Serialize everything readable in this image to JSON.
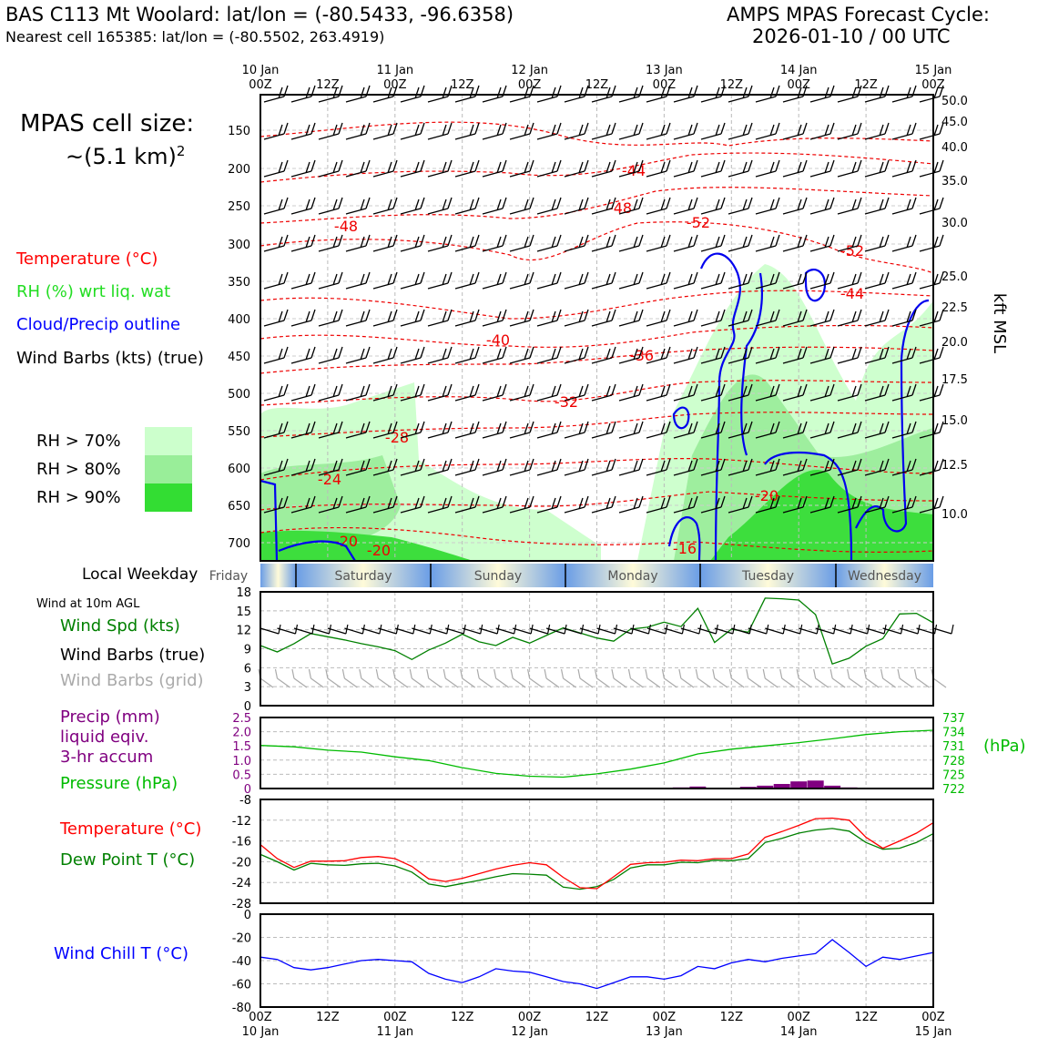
{
  "header": {
    "title": "BAS C113 Mt Woolard: lat/lon = (-80.5433, -96.6358)",
    "subtitle": "Nearest cell 165385: lat/lon = (-80.5502, 263.4919)",
    "forecast_title": "AMPS MPAS Forecast Cycle:",
    "forecast_cycle": "2026-01-10 / 00 UTC"
  },
  "cell_size": {
    "line1": "MPAS cell size:",
    "line2": "~(5.1 km)",
    "exp": "2"
  },
  "legend_upper": [
    {
      "label": "Temperature (°C)",
      "color": "#ff0000"
    },
    {
      "label": "RH (%) wrt liq. wat",
      "color": "#22dd22"
    },
    {
      "label": "Cloud/Precip outline",
      "color": "#0000ff"
    },
    {
      "label": "Wind Barbs (kts) (true)",
      "color": "#000000"
    }
  ],
  "rh_legend": [
    {
      "label": "RH > 70%",
      "color": "#ccffcc"
    },
    {
      "label": "RH > 80%",
      "color": "#99ee99"
    },
    {
      "label": "RH > 90%",
      "color": "#33dd33"
    }
  ],
  "legend_wind": {
    "title": "Wind at 10m AGL",
    "items": [
      {
        "label": "Wind Spd (kts)",
        "color": "#008000"
      },
      {
        "label": "Wind Barbs (true)",
        "color": "#000000"
      },
      {
        "label": "Wind Barbs (grid)",
        "color": "#aaaaaa"
      }
    ]
  },
  "legend_precip": [
    {
      "label": "Precip (mm)",
      "color": "#800080"
    },
    {
      "label": "liquid eqiv.",
      "color": "#800080"
    },
    {
      "label": "3-hr accum",
      "color": "#800080"
    },
    {
      "label": "Pressure (hPa)",
      "color": "#00bb00"
    }
  ],
  "legend_temp": [
    {
      "label": "Temperature (°C)",
      "color": "#ff0000"
    },
    {
      "label": "Dew Point T (°C)",
      "color": "#008000"
    }
  ],
  "legend_chill": {
    "label": "Wind Chill T (°C)",
    "color": "#0000ff"
  },
  "weekday": {
    "label": "Local Weekday",
    "days": [
      "Friday",
      "Saturday",
      "Sunday",
      "Monday",
      "Tuesday",
      "Wednesday"
    ]
  },
  "time_axis": {
    "labels": [
      "00Z",
      "12Z",
      "00Z",
      "12Z",
      "00Z",
      "12Z",
      "00Z",
      "12Z",
      "00Z",
      "12Z",
      "00Z"
    ],
    "dates": [
      {
        "label": "10 Jan",
        "at": 0
      },
      {
        "label": "11 Jan",
        "at": 2
      },
      {
        "label": "12 Jan",
        "at": 4
      },
      {
        "label": "13 Jan",
        "at": 6
      },
      {
        "label": "14 Jan",
        "at": 8
      },
      {
        "label": "15 Jan",
        "at": 10
      }
    ]
  },
  "chart_data": [
    {
      "type": "contour",
      "name": "upper-air",
      "x_unit": "hours from 2026-01-10 00Z",
      "xlim": [
        0,
        120
      ],
      "ylabel_right": "kft MSL",
      "y_ticks_left": [
        "150",
        "200",
        "250",
        "300",
        "350",
        "400",
        "450",
        "500",
        "550",
        "600",
        "650",
        "700"
      ],
      "y_ticks_right": [
        "50.0",
        "45.0",
        "40.0",
        "35.0",
        "30.0",
        "25.0",
        "22.5",
        "20.0",
        "17.5",
        "15.0",
        "12.5",
        "10.0"
      ],
      "temperature_contour_labels": [
        "-44",
        "-48",
        "-48",
        "-52",
        "-52",
        "-44",
        "-40",
        "-36",
        "-32",
        "-28",
        "-24",
        "-20",
        "-20",
        "-20",
        "-16"
      ]
    },
    {
      "type": "line",
      "name": "wind-speed",
      "ylabel": "Wind Spd (kts)",
      "ylim": [
        0,
        18
      ],
      "y_ticks": [
        "0",
        "3",
        "6",
        "9",
        "12",
        "15",
        "18"
      ],
      "x": [
        0,
        3,
        6,
        9,
        12,
        15,
        18,
        21,
        24,
        27,
        30,
        33,
        36,
        39,
        42,
        45,
        48,
        51,
        54,
        57,
        60,
        63,
        66,
        69,
        72,
        75,
        78,
        81,
        84,
        87,
        90,
        93,
        96,
        99,
        102,
        105,
        108,
        111,
        114,
        117,
        120
      ],
      "values": [
        9.5,
        8.5,
        9.8,
        11.4,
        10.9,
        10.4,
        9.8,
        9.3,
        8.7,
        7.3,
        8.8,
        9.9,
        11.3,
        10.1,
        9.5,
        10.8,
        9.9,
        11.1,
        12.3,
        11.5,
        10.7,
        10.2,
        12.1,
        12.4,
        13.2,
        12.5,
        15.4,
        10.0,
        12.1,
        11.6,
        17.0,
        16.9,
        16.7,
        14.4,
        6.6,
        7.5,
        9.4,
        10.6,
        14.5,
        14.6,
        13.1
      ]
    },
    {
      "type": "bar+line",
      "name": "precip-pressure",
      "precip_ylabel": "Precip (mm)",
      "precip_ylim": [
        0,
        2.5
      ],
      "precip_ticks": [
        "0",
        "0.5",
        "1.0",
        "1.5",
        "2.0",
        "2.5"
      ],
      "pressure_ylabel": "(hPa)",
      "pressure_ylim": [
        722,
        737
      ],
      "pressure_ticks": [
        "722",
        "725",
        "728",
        "731",
        "734",
        "737"
      ],
      "precip_x": [
        75,
        78,
        81,
        84,
        87,
        90,
        93,
        96,
        99,
        102,
        105
      ],
      "precip_values": [
        0.04,
        0.07,
        0.03,
        0.02,
        0.06,
        0.1,
        0.16,
        0.25,
        0.28,
        0.1,
        0.04
      ],
      "pressure_x": [
        0,
        6,
        12,
        18,
        24,
        30,
        36,
        42,
        48,
        54,
        60,
        66,
        72,
        78,
        84,
        90,
        96,
        102,
        108,
        114,
        120
      ],
      "pressure_values": [
        731.1,
        730.8,
        730.1,
        729.7,
        728.7,
        727.9,
        726.4,
        725.2,
        724.6,
        724.4,
        725.1,
        726.1,
        727.4,
        729.3,
        730.3,
        731.0,
        731.7,
        732.5,
        733.4,
        734.0,
        734.3
      ]
    },
    {
      "type": "line",
      "name": "temperature-dewpoint",
      "ylim": [
        -28,
        -8
      ],
      "y_ticks": [
        "-8",
        "-12",
        "-16",
        "-20",
        "-24",
        "-28"
      ],
      "x": [
        0,
        3,
        6,
        9,
        12,
        15,
        18,
        21,
        24,
        27,
        30,
        33,
        36,
        39,
        42,
        45,
        48,
        51,
        54,
        57,
        60,
        63,
        66,
        69,
        72,
        75,
        78,
        81,
        84,
        87,
        90,
        93,
        96,
        99,
        102,
        105,
        108,
        111,
        114,
        117,
        120
      ],
      "series": [
        {
          "name": "Temperature (°C)",
          "color": "#ff0000",
          "values": [
            -16.7,
            -19.4,
            -21.1,
            -19.9,
            -19.9,
            -19.8,
            -19.2,
            -19.0,
            -19.4,
            -20.9,
            -23.3,
            -23.8,
            -23.2,
            -22.3,
            -21.4,
            -20.7,
            -20.2,
            -20.6,
            -23.0,
            -25.0,
            -25.2,
            -22.9,
            -20.5,
            -20.2,
            -20.1,
            -19.7,
            -19.8,
            -19.4,
            -19.4,
            -18.5,
            -15.3,
            -14.2,
            -13.0,
            -11.7,
            -11.6,
            -12.0,
            -15.3,
            -17.4,
            -16.0,
            -14.5,
            -12.5
          ]
        },
        {
          "name": "Dew Point T (°C)",
          "color": "#008000",
          "values": [
            -18.6,
            -20.0,
            -21.6,
            -20.3,
            -20.6,
            -20.7,
            -20.4,
            -20.3,
            -20.8,
            -22.0,
            -24.3,
            -24.8,
            -24.2,
            -23.6,
            -22.9,
            -22.3,
            -22.4,
            -22.6,
            -24.9,
            -25.3,
            -24.8,
            -23.4,
            -21.2,
            -20.6,
            -20.6,
            -20.1,
            -20.2,
            -19.7,
            -19.8,
            -19.4,
            -16.3,
            -15.5,
            -14.5,
            -13.9,
            -13.6,
            -14.1,
            -16.3,
            -17.6,
            -17.4,
            -16.3,
            -14.6
          ]
        }
      ]
    },
    {
      "type": "line",
      "name": "wind-chill",
      "ylabel": "Wind Chill T (°C)",
      "ylim": [
        -80,
        0
      ],
      "y_ticks": [
        "0",
        "-20",
        "-40",
        "-60",
        "-80"
      ],
      "x": [
        0,
        3,
        6,
        9,
        12,
        15,
        18,
        21,
        24,
        27,
        30,
        33,
        36,
        39,
        42,
        45,
        48,
        51,
        54,
        57,
        60,
        63,
        66,
        69,
        72,
        75,
        78,
        81,
        84,
        87,
        90,
        93,
        96,
        99,
        102,
        105,
        108,
        111,
        114,
        117,
        120
      ],
      "values": [
        -37,
        -39,
        -46,
        -48,
        -46,
        -43,
        -40,
        -39,
        -40,
        -41,
        -51,
        -56,
        -59,
        -54,
        -47,
        -49,
        -50,
        -54,
        -58,
        -60,
        -64,
        -59,
        -54,
        -54,
        -56,
        -53,
        -45,
        -47,
        -42,
        -39,
        -41,
        -38,
        -36,
        -34,
        -22,
        -33,
        -45,
        -37,
        -39,
        -36,
        -33
      ],
      "color": "#0000ff"
    }
  ]
}
